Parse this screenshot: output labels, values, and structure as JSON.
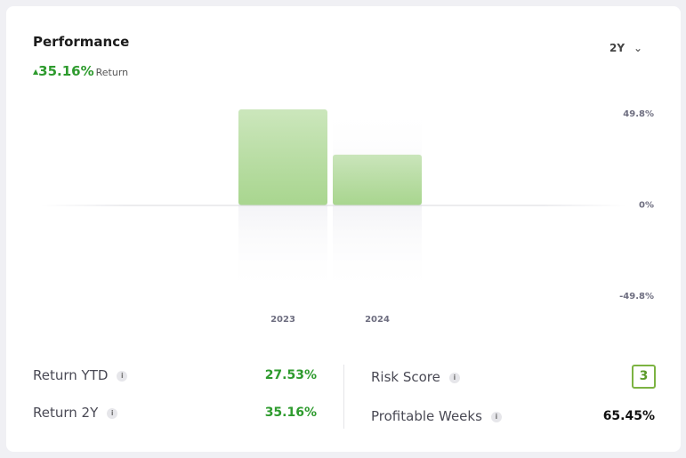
{
  "header": {
    "title": "Performance",
    "change": "35.16%",
    "change_label": "Return",
    "period": "2Y"
  },
  "chart_data": {
    "type": "bar",
    "categories": [
      "2023",
      "2024"
    ],
    "values": [
      52.2,
      27.5
    ],
    "color": "#a9d68f",
    "ylim": [
      -49.8,
      49.8
    ],
    "yticks": [
      {
        "value": 49.8,
        "label": "49.8%"
      },
      {
        "value": 0,
        "label": "0%"
      },
      {
        "value": -49.8,
        "label": "-49.8%"
      }
    ]
  },
  "stats": [
    {
      "label": "Return YTD",
      "value": "27.53%"
    },
    {
      "label": "Return 2Y",
      "value": "35.16%"
    },
    {
      "label": "Risk Score",
      "value": "3"
    },
    {
      "label": "Profitable Weeks",
      "value": "65.45%"
    }
  ]
}
